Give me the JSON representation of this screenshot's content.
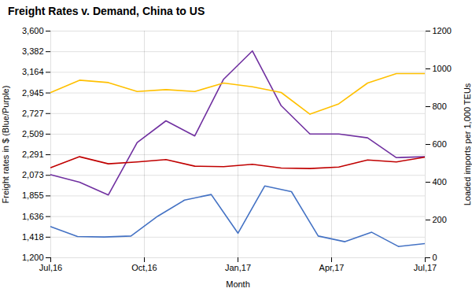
{
  "chart_data": {
    "type": "line",
    "title": "Freight Rates v. Demand, China to US",
    "xlabel": "Month",
    "ylabel": "Freight rates in $ (Blue/Purple)",
    "y2label": "Loaded imports per 1,000 TEUs",
    "xlim": [
      0,
      12
    ],
    "xticks": [
      {
        "value": 0,
        "label": "Jul,16"
      },
      {
        "value": 3,
        "label": "Oct,16"
      },
      {
        "value": 6,
        "label": "Jan,17"
      },
      {
        "value": 9,
        "label": "Apr,17"
      },
      {
        "value": 12,
        "label": "Jul,17"
      }
    ],
    "ylim": [
      1200,
      3600
    ],
    "yticks": [
      {
        "value": 1200,
        "label": "1,200"
      },
      {
        "value": 1418,
        "label": "1,418"
      },
      {
        "value": 1636,
        "label": "1,636"
      },
      {
        "value": 1855,
        "label": "1,855"
      },
      {
        "value": 2073,
        "label": "2,073"
      },
      {
        "value": 2291,
        "label": "2,291"
      },
      {
        "value": 2509,
        "label": "2,509"
      },
      {
        "value": 2727,
        "label": "2,727"
      },
      {
        "value": 2945,
        "label": "2,945"
      },
      {
        "value": 3164,
        "label": "3,164"
      },
      {
        "value": 3382,
        "label": "3,382"
      },
      {
        "value": 3600,
        "label": "3,600"
      }
    ],
    "y2lim": [
      0,
      1200
    ],
    "y2ticks": [
      0,
      200,
      400,
      600,
      800,
      1000,
      1200
    ],
    "grid": true,
    "series": [
      {
        "color": "#4472C4",
        "x": [
          0,
          0.8571428571428571,
          1.7142857142857142,
          2.571428571428571,
          3.4285714285714284,
          4.285714285714286,
          5.142857142857142,
          6,
          6.857142857142857,
          7.714285714285714,
          8.571428571428571,
          9.428571428571429,
          10.285714285714286,
          11.142857142857142,
          12
        ],
        "values": [
          1530,
          1425,
          1420,
          1430,
          1640,
          1810,
          1870,
          1460,
          1960,
          1900,
          1430,
          1370,
          1470,
          1320,
          1350
        ]
      },
      {
        "color": "#7030A0",
        "x": [
          0,
          0.9230769230769231,
          1.8461538461538463,
          2.769230769230769,
          3.6923076923076925,
          4.615384615384615,
          5.538461538461538,
          6.461538461538462,
          7.384615384615385,
          8.307692307692308,
          9.23076923076923,
          10.153846153846153,
          11.076923076923077,
          12
        ],
        "values": [
          2080,
          2000,
          1865,
          2420,
          2650,
          2490,
          3090,
          3390,
          2810,
          2510,
          2510,
          2470,
          2260,
          2270
        ]
      },
      {
        "color": "#FFC000",
        "x": [
          0,
          0.9230769230769231,
          1.8461538461538463,
          2.769230769230769,
          3.6923076923076925,
          4.615384615384615,
          5.538461538461538,
          6.461538461538462,
          7.384615384615385,
          8.307692307692308,
          9.23076923076923,
          10.153846153846153,
          11.076923076923077,
          12
        ],
        "values": [
          2950,
          3080,
          3055,
          2960,
          2980,
          2960,
          3050,
          3010,
          2950,
          2720,
          2830,
          3050,
          3150,
          3150
        ]
      },
      {
        "color": "#C00000",
        "x": [
          0,
          0.9230769230769231,
          1.8461538461538463,
          2.769230769230769,
          3.6923076923076925,
          4.615384615384615,
          5.538461538461538,
          6.461538461538462,
          7.384615384615385,
          8.307692307692308,
          9.23076923076923,
          10.153846153846153,
          11.076923076923077,
          12
        ],
        "values": [
          2155,
          2270,
          2195,
          2215,
          2240,
          2170,
          2165,
          2190,
          2150,
          2145,
          2160,
          2235,
          2215,
          2265
        ]
      }
    ]
  }
}
